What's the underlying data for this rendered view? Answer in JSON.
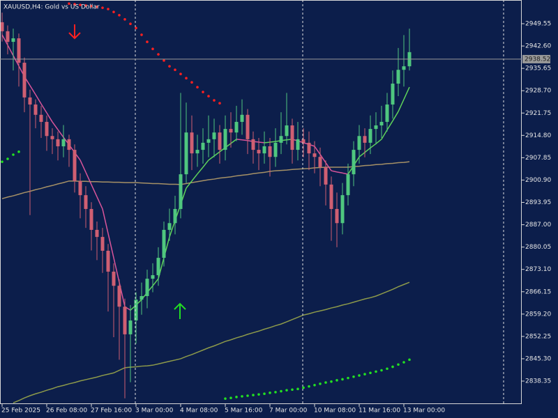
{
  "chart_data": {
    "type": "candlestick",
    "title": "XAUUSD,H4: Gold vs US Dollar",
    "categories": [
      "25 Feb 2025",
      null,
      null,
      null,
      null,
      null,
      null,
      null,
      "26 Feb 08:00",
      null,
      null,
      null,
      null,
      null,
      null,
      null,
      "27 Feb 16:00",
      null,
      null,
      null,
      null,
      null,
      null,
      null,
      "3 Mar 00:00",
      null,
      null,
      null,
      null,
      null,
      null,
      null,
      "4 Mar 08:00",
      null,
      null,
      null,
      null,
      null,
      null,
      null,
      "5 Mar 16:00",
      null,
      null,
      null,
      null,
      null,
      null,
      null,
      "7 Mar 00:00",
      null,
      null,
      null,
      null,
      null,
      null,
      null,
      "10 Mar 08:00",
      null,
      null,
      null,
      null,
      null,
      null,
      null,
      "11 Mar 16:00",
      null,
      null,
      null,
      null,
      null,
      null,
      null,
      "13 Mar 00:00",
      null
    ],
    "open": [
      2950.0,
      2947.2,
      2943.9,
      2945.0,
      2937.4,
      2926.6,
      2924.4,
      2921.2,
      2919.0,
      2914.6,
      2913.6,
      2911.4,
      2913.6,
      2910.3,
      2900.6,
      2896.2,
      2891.9,
      2885.4,
      2883.2,
      2878.9,
      2872.4,
      2868.0,
      2861.5,
      2852.9,
      2857.2,
      2863.7,
      2864.8,
      2870.2,
      2871.3,
      2876.7,
      2885.4,
      2887.5,
      2891.9,
      2902.7,
      2915.7,
      2909.2,
      2910.3,
      2912.5,
      2913.6,
      2915.7,
      2910.3,
      2916.8,
      2915.7,
      2919.0,
      2921.2,
      2913.6,
      2910.3,
      2909.2,
      2911.4,
      2908.1,
      2912.5,
      2914.6,
      2917.9,
      2910.3,
      2913.6,
      2912.5,
      2909.2,
      2908.1,
      2904.9,
      2899.5,
      2891.9,
      2887.5,
      2896.2,
      2902.7,
      2910.3,
      2914.6,
      2912.5,
      2916.8,
      2917.9,
      2919.0,
      2924.4,
      2930.9,
      2935.2,
      2936.3
    ],
    "high": [
      2953.0,
      2949.0,
      2948.0,
      2946.5,
      2939.0,
      2929.0,
      2926.0,
      2924.0,
      2921.0,
      2917.0,
      2916.0,
      2918.0,
      2915.0,
      2912.0,
      2903.0,
      2899.0,
      2894.0,
      2888.0,
      2886.0,
      2881.0,
      2875.0,
      2870.0,
      2864.0,
      2862.0,
      2866.0,
      2869.0,
      2873.0,
      2875.0,
      2880.0,
      2888.0,
      2892.0,
      2896.0,
      2928.0,
      2925.0,
      2921.0,
      2915.0,
      2917.0,
      2921.0,
      2920.0,
      2918.0,
      2921.0,
      2922.0,
      2924.0,
      2926.0,
      2923.0,
      2916.0,
      2914.0,
      2916.0,
      2914.0,
      2917.0,
      2922.0,
      2928.0,
      2920.0,
      2919.0,
      2917.0,
      2916.0,
      2913.0,
      2911.0,
      2907.0,
      2902.0,
      2897.0,
      2900.0,
      2906.0,
      2913.0,
      2918.0,
      2917.0,
      2921.0,
      2922.0,
      2924.0,
      2928.0,
      2935.0,
      2942.0,
      2946.0,
      2948.0
    ],
    "low": [
      2944.0,
      2940.0,
      2935.0,
      2930.0,
      2922.0,
      2890.0,
      2917.0,
      2914.0,
      2910.0,
      2909.0,
      2907.0,
      2908.0,
      2905.0,
      2897.0,
      2889.0,
      2886.0,
      2879.0,
      2876.0,
      2872.0,
      2860.0,
      2852.0,
      2845.0,
      2833.0,
      2838.0,
      2850.0,
      2859.0,
      2861.0,
      2866.0,
      2868.0,
      2874.0,
      2882.0,
      2884.0,
      2889.0,
      2900.0,
      2904.0,
      2905.0,
      2906.0,
      2908.0,
      2908.0,
      2906.0,
      2907.0,
      2911.0,
      2913.0,
      2915.0,
      2909.0,
      2906.0,
      2904.0,
      2906.0,
      2902.0,
      2905.0,
      2909.0,
      2912.0,
      2906.0,
      2907.0,
      2908.0,
      2904.0,
      2903.0,
      2899.0,
      2893.0,
      2882.0,
      2880.0,
      2884.0,
      2893.0,
      2899.0,
      2906.0,
      2908.0,
      2909.0,
      2912.0,
      2914.0,
      2916.0,
      2920.0,
      2927.0,
      2930.0,
      2935.0
    ],
    "close": [
      2947.2,
      2943.9,
      2945.0,
      2937.4,
      2926.6,
      2924.4,
      2921.2,
      2919.0,
      2914.6,
      2913.6,
      2911.4,
      2913.6,
      2910.3,
      2900.6,
      2896.2,
      2891.9,
      2885.4,
      2883.2,
      2878.9,
      2872.4,
      2868.0,
      2861.5,
      2852.9,
      2857.2,
      2863.7,
      2864.8,
      2870.2,
      2871.3,
      2876.7,
      2885.4,
      2887.5,
      2891.9,
      2902.7,
      2915.7,
      2909.2,
      2910.3,
      2912.5,
      2913.6,
      2915.7,
      2910.3,
      2916.8,
      2915.7,
      2919.0,
      2921.2,
      2913.6,
      2910.3,
      2909.2,
      2911.4,
      2908.1,
      2912.5,
      2914.6,
      2917.9,
      2910.3,
      2913.6,
      2912.5,
      2909.2,
      2908.1,
      2904.9,
      2899.5,
      2891.9,
      2887.5,
      2896.2,
      2902.7,
      2910.3,
      2914.6,
      2912.5,
      2916.8,
      2917.9,
      2919.0,
      2924.4,
      2930.9,
      2935.2,
      2936.3,
      2940.7
    ],
    "up_color": "#4fc77f",
    "down_color": "#cf5f72",
    "current_price": 2938.52,
    "ylim": [
      2831.2,
      2956.92
    ],
    "yticks": [
      2949.55,
      {
        "value": 2942.6,
        "label": "2942.60"
      },
      2935.65,
      {
        "value": 2928.7,
        "label": "2928.70"
      },
      2921.75,
      {
        "value": 2914.8,
        "label": "2914.80"
      },
      2907.85,
      {
        "value": 2900.9,
        "label": "2900.90"
      },
      2893.95,
      {
        "value": 2887,
        "label": "2887.00"
      },
      2880.05,
      {
        "value": 2873.1,
        "label": "2873.10"
      },
      2866.15,
      {
        "value": 2859.2,
        "label": "2859.20"
      },
      2852.25,
      {
        "value": 2845.3,
        "label": "2845.30"
      },
      2838.35
    ],
    "overlays": [
      {
        "type": "line",
        "color": "#a69166",
        "values": [
          2895.1,
          2895.6,
          2896.0,
          2896.5,
          2897.0,
          2897.4,
          2897.9,
          2898.3,
          2898.8,
          2899.2,
          2899.7,
          2900.1,
          2900.6,
          2900.6,
          2900.5,
          2900.5,
          2900.4,
          2900.4,
          2900.3,
          2900.3,
          2900.2,
          2900.2,
          2900.1,
          2900.1,
          2900.1,
          2900.0,
          2899.9,
          2899.8,
          2899.8,
          2899.7,
          2899.6,
          2899.6,
          2899.5,
          2899.8,
          2900.1,
          2900.4,
          2900.7,
          2901.0,
          2901.2,
          2901.5,
          2901.7,
          2901.9,
          2902.2,
          2902.4,
          2902.6,
          2902.9,
          2903.1,
          2903.3,
          2903.6,
          2903.8,
          2903.9,
          2904.0,
          2904.2,
          2904.3,
          2904.4,
          2904.5,
          2904.7,
          2904.8,
          2904.9,
          2904.9,
          2904.9,
          2904.9,
          2904.9,
          2905.1,
          2905.2,
          2905.4,
          2905.5,
          2905.7,
          2905.8,
          2906.0,
          2906.1,
          2906.3,
          2906.4,
          2906.6
        ]
      },
      {
        "type": "line",
        "color": "#5fd35a",
        "down_color": "#d9559a",
        "values": [
          2946.1,
          2942.9,
          2939.6,
          2936.4,
          2933.1,
          2930.3,
          2927.5,
          2924.6,
          2921.8,
          2919.0,
          2916.6,
          2914.2,
          2911.9,
          2909.5,
          2907.1,
          2903.3,
          2899.5,
          2895.7,
          2891.9,
          2884.3,
          2876.7,
          2869.1,
          2861.5,
          2860.4,
          2862.0,
          2863.7,
          2865.9,
          2868.0,
          2870.2,
          2876.7,
          2883.2,
          2888.3,
          2893.3,
          2898.4,
          2900.6,
          2902.8,
          2904.9,
          2907.1,
          2908.4,
          2909.7,
          2911.0,
          2912.3,
          2913.6,
          2913.4,
          2913.2,
          2912.9,
          2912.7,
          2912.5,
          2912.7,
          2912.9,
          2913.2,
          2913.4,
          2913.6,
          2913.1,
          2912.5,
          2912.0,
          2911.4,
          2908.9,
          2906.3,
          2903.8,
          2903.4,
          2903.1,
          2902.7,
          2905.4,
          2908.1,
          2909.5,
          2910.9,
          2912.2,
          2913.6,
          2916.5,
          2919.3,
          2922.2,
          2926.0,
          2929.8
        ]
      },
      {
        "type": "line",
        "color": "#8d9a4a",
        "values": [
          null,
          null,
          2831.6,
          2832.3,
          2833.1,
          2833.8,
          2834.4,
          2834.9,
          2835.5,
          2836.0,
          2836.6,
          2837.0,
          2837.5,
          2837.9,
          2838.4,
          2838.8,
          2839.2,
          2839.6,
          2840.1,
          2840.5,
          2840.9,
          2841.7,
          2842.5,
          2842.7,
          2842.8,
          2843.0,
          2843.1,
          2843.3,
          2843.7,
          2844.1,
          2844.5,
          2844.9,
          2845.3,
          2846.0,
          2846.6,
          2847.3,
          2848.0,
          2848.7,
          2849.3,
          2850.0,
          2850.7,
          2851.2,
          2851.8,
          2852.3,
          2852.9,
          2853.4,
          2853.9,
          2854.5,
          2855.0,
          2855.6,
          2856.1,
          2856.8,
          2857.5,
          2858.2,
          2858.9,
          2859.3,
          2859.8,
          2860.2,
          2860.6,
          2861.1,
          2861.5,
          2862.0,
          2862.4,
          2862.9,
          2863.4,
          2863.9,
          2864.3,
          2864.8,
          2865.5,
          2866.2,
          2866.9,
          2867.7,
          2868.4,
          2869.1
        ]
      },
      {
        "type": "dots",
        "color": "#ff2020",
        "values": [
          null,
          null,
          null,
          null,
          null,
          null,
          null,
          null,
          null,
          null,
          null,
          null,
          2955.8,
          2955.6,
          2955.4,
          2955.2,
          2955.0,
          2954.8,
          2954.5,
          2954.1,
          2953.2,
          2952.2,
          2950.9,
          2949.5,
          2948.2,
          2946.1,
          2943.9,
          2941.7,
          2940.0,
          2938.1,
          2936.3,
          2935.2,
          2933.9,
          2932.6,
          2931.3,
          2929.8,
          2928.3,
          2927.0,
          2925.7,
          2924.8,
          null,
          null,
          null,
          null,
          null,
          null,
          null,
          null,
          null,
          null,
          null,
          null,
          null,
          null,
          null,
          null,
          null,
          null,
          null,
          null,
          null,
          null,
          null,
          null,
          null,
          null,
          null,
          null,
          null,
          null,
          null,
          null,
          null,
          null
        ]
      },
      {
        "type": "dots",
        "color": "#22e022",
        "values": [
          2906.6,
          2907.5,
          2908.8,
          2909.7,
          null,
          null,
          null,
          null,
          null,
          null,
          null,
          null,
          null,
          null,
          null,
          null,
          null,
          null,
          null,
          null,
          null,
          null,
          null,
          null,
          null,
          null,
          null,
          null,
          null,
          null,
          null,
          null,
          null,
          null,
          null,
          null,
          null,
          null,
          null,
          null,
          2832.9,
          2833.1,
          2833.4,
          2833.6,
          2833.8,
          2834.0,
          2834.2,
          2834.4,
          2834.7,
          2834.9,
          2835.2,
          2835.5,
          2835.7,
          2835.9,
          2836.3,
          2836.7,
          2837.1,
          2837.5,
          2837.9,
          2838.2,
          2838.6,
          2838.9,
          2839.3,
          2839.7,
          2840.1,
          2840.5,
          2840.9,
          2841.3,
          2841.7,
          2842.2,
          2842.8,
          2843.5,
          2844.2,
          2845.0
        ]
      }
    ]
  }
}
